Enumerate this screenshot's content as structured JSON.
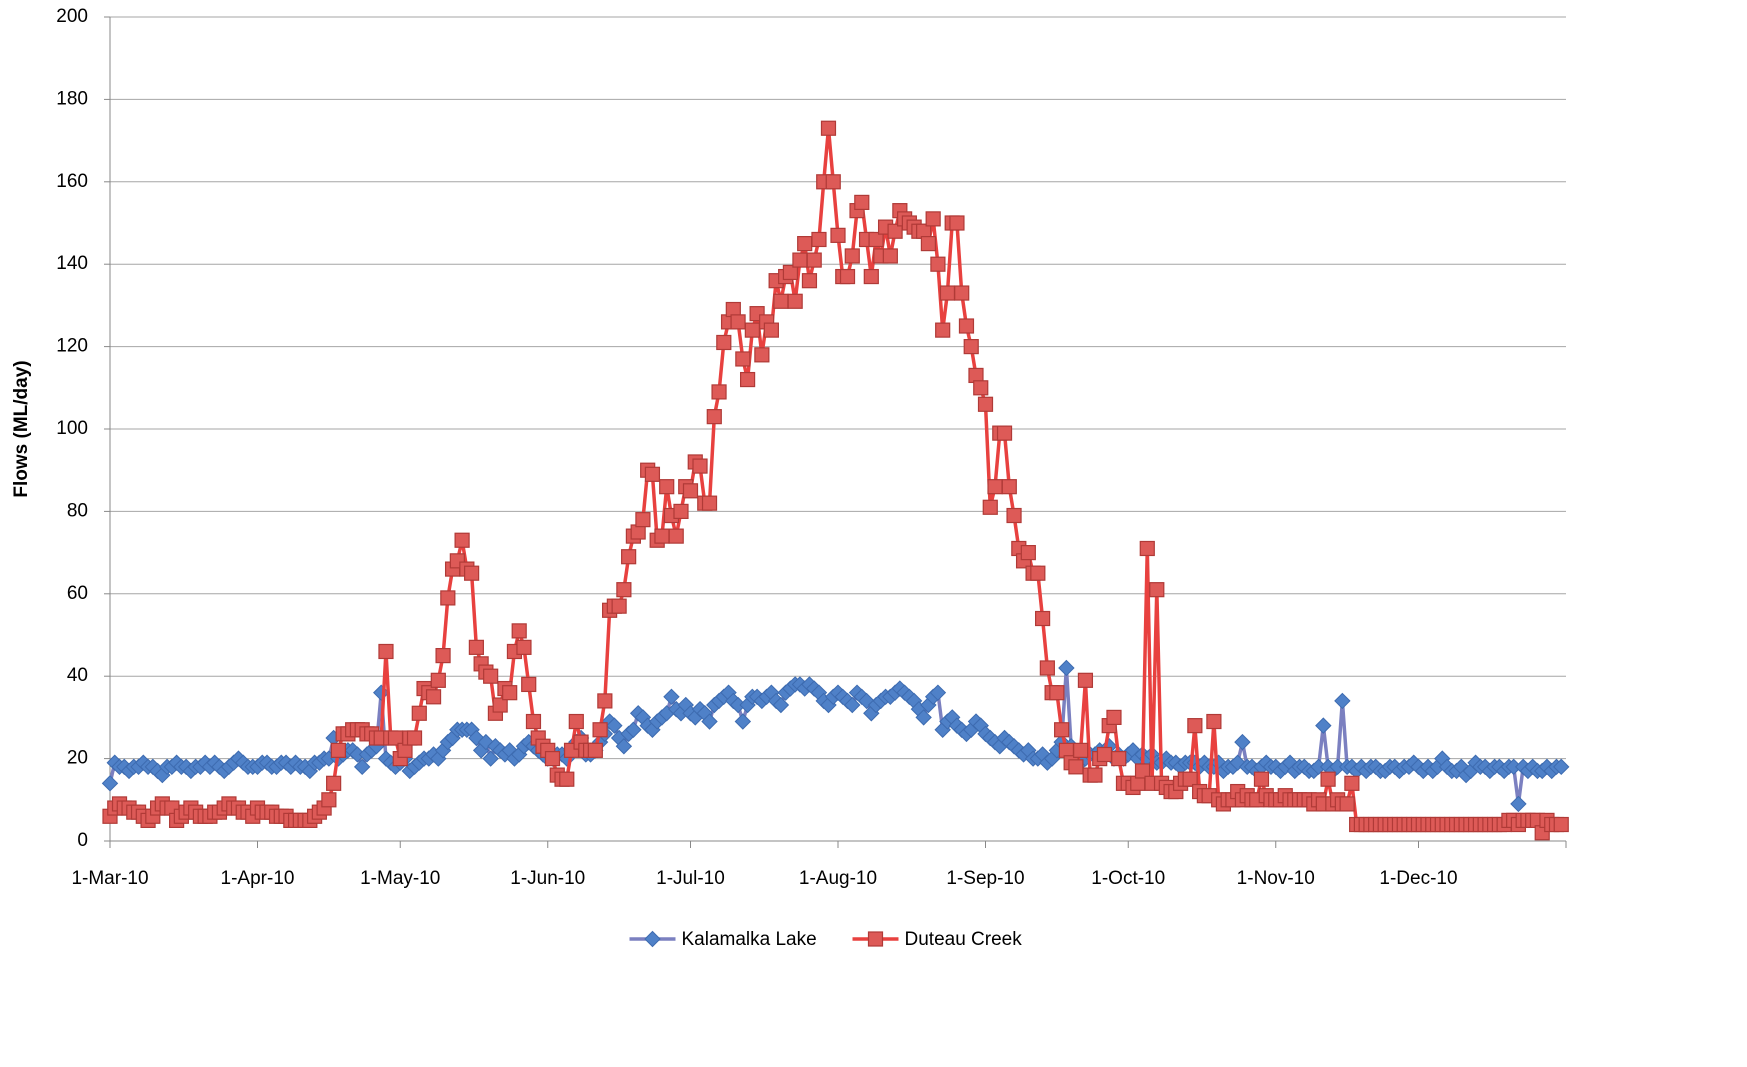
{
  "chart_data": {
    "type": "line",
    "y_label": "Flows (ML/day)",
    "ylim": [
      0,
      200
    ],
    "yticks": [
      0,
      20,
      40,
      60,
      80,
      100,
      120,
      140,
      160,
      180,
      200
    ],
    "grid": true,
    "xlim": [
      "2010-03-01",
      "2011-01-01"
    ],
    "xticks": [
      {
        "value": "2010-03-01",
        "label": "1-Mar-10"
      },
      {
        "value": "2010-04-01",
        "label": "1-Apr-10"
      },
      {
        "value": "2010-05-01",
        "label": "1-May-10"
      },
      {
        "value": "2010-06-01",
        "label": "1-Jun-10"
      },
      {
        "value": "2010-07-01",
        "label": "1-Jul-10"
      },
      {
        "value": "2010-08-01",
        "label": "1-Aug-10"
      },
      {
        "value": "2010-09-01",
        "label": "1-Sep-10"
      },
      {
        "value": "2010-10-01",
        "label": "1-Oct-10"
      },
      {
        "value": "2010-11-01",
        "label": "1-Nov-10"
      },
      {
        "value": "2010-12-01",
        "label": "1-Dec-10"
      }
    ],
    "legend": "bottom",
    "x": [
      "2010-03-01",
      "2010-03-02",
      "2010-03-03",
      "2010-03-04",
      "2010-03-05",
      "2010-03-06",
      "2010-03-07",
      "2010-03-08",
      "2010-03-09",
      "2010-03-10",
      "2010-03-11",
      "2010-03-12",
      "2010-03-13",
      "2010-03-14",
      "2010-03-15",
      "2010-03-16",
      "2010-03-17",
      "2010-03-18",
      "2010-03-19",
      "2010-03-20",
      "2010-03-21",
      "2010-03-22",
      "2010-03-23",
      "2010-03-24",
      "2010-03-25",
      "2010-03-26",
      "2010-03-27",
      "2010-03-28",
      "2010-03-29",
      "2010-03-30",
      "2010-03-31",
      "2010-04-01",
      "2010-04-02",
      "2010-04-03",
      "2010-04-04",
      "2010-04-05",
      "2010-04-06",
      "2010-04-07",
      "2010-04-08",
      "2010-04-09",
      "2010-04-10",
      "2010-04-11",
      "2010-04-12",
      "2010-04-13",
      "2010-04-14",
      "2010-04-15",
      "2010-04-16",
      "2010-04-17",
      "2010-04-18",
      "2010-04-19",
      "2010-04-20",
      "2010-04-21",
      "2010-04-22",
      "2010-04-23",
      "2010-04-24",
      "2010-04-25",
      "2010-04-26",
      "2010-04-27",
      "2010-04-28",
      "2010-04-29",
      "2010-04-30",
      "2010-05-01",
      "2010-05-02",
      "2010-05-03",
      "2010-05-04",
      "2010-05-05",
      "2010-05-06",
      "2010-05-07",
      "2010-05-08",
      "2010-05-09",
      "2010-05-10",
      "2010-05-11",
      "2010-05-12",
      "2010-05-13",
      "2010-05-14",
      "2010-05-15",
      "2010-05-16",
      "2010-05-17",
      "2010-05-18",
      "2010-05-19",
      "2010-05-20",
      "2010-05-21",
      "2010-05-22",
      "2010-05-23",
      "2010-05-24",
      "2010-05-25",
      "2010-05-26",
      "2010-05-27",
      "2010-05-28",
      "2010-05-29",
      "2010-05-30",
      "2010-05-31",
      "2010-06-01",
      "2010-06-02",
      "2010-06-03",
      "2010-06-04",
      "2010-06-05",
      "2010-06-06",
      "2010-06-07",
      "2010-06-08",
      "2010-06-09",
      "2010-06-10",
      "2010-06-11",
      "2010-06-12",
      "2010-06-13",
      "2010-06-14",
      "2010-06-15",
      "2010-06-16",
      "2010-06-17",
      "2010-06-18",
      "2010-06-19",
      "2010-06-20",
      "2010-06-21",
      "2010-06-22",
      "2010-06-23",
      "2010-06-24",
      "2010-06-25",
      "2010-06-26",
      "2010-06-27",
      "2010-06-28",
      "2010-06-29",
      "2010-06-30",
      "2010-07-01",
      "2010-07-02",
      "2010-07-03",
      "2010-07-04",
      "2010-07-05",
      "2010-07-06",
      "2010-07-07",
      "2010-07-08",
      "2010-07-09",
      "2010-07-10",
      "2010-07-11",
      "2010-07-12",
      "2010-07-13",
      "2010-07-14",
      "2010-07-15",
      "2010-07-16",
      "2010-07-17",
      "2010-07-18",
      "2010-07-19",
      "2010-07-20",
      "2010-07-21",
      "2010-07-22",
      "2010-07-23",
      "2010-07-24",
      "2010-07-25",
      "2010-07-26",
      "2010-07-27",
      "2010-07-28",
      "2010-07-29",
      "2010-07-30",
      "2010-07-31",
      "2010-08-01",
      "2010-08-02",
      "2010-08-03",
      "2010-08-04",
      "2010-08-05",
      "2010-08-06",
      "2010-08-07",
      "2010-08-08",
      "2010-08-09",
      "2010-08-10",
      "2010-08-11",
      "2010-08-12",
      "2010-08-13",
      "2010-08-14",
      "2010-08-15",
      "2010-08-16",
      "2010-08-17",
      "2010-08-18",
      "2010-08-19",
      "2010-08-20",
      "2010-08-21",
      "2010-08-22",
      "2010-08-23",
      "2010-08-24",
      "2010-08-25",
      "2010-08-26",
      "2010-08-27",
      "2010-08-28",
      "2010-08-29",
      "2010-08-30",
      "2010-08-31",
      "2010-09-01",
      "2010-09-02",
      "2010-09-03",
      "2010-09-04",
      "2010-09-05",
      "2010-09-06",
      "2010-09-07",
      "2010-09-08",
      "2010-09-09",
      "2010-09-10",
      "2010-09-11",
      "2010-09-12",
      "2010-09-13",
      "2010-09-14",
      "2010-09-15",
      "2010-09-16",
      "2010-09-17",
      "2010-09-18",
      "2010-09-19",
      "2010-09-20",
      "2010-09-21",
      "2010-09-22",
      "2010-09-23",
      "2010-09-24",
      "2010-09-25",
      "2010-09-26",
      "2010-09-27",
      "2010-09-28",
      "2010-09-29",
      "2010-09-30",
      "2010-10-01",
      "2010-10-02",
      "2010-10-03",
      "2010-10-04",
      "2010-10-05",
      "2010-10-06",
      "2010-10-07",
      "2010-10-08",
      "2010-10-09",
      "2010-10-10",
      "2010-10-11",
      "2010-10-12",
      "2010-10-13",
      "2010-10-14",
      "2010-10-15",
      "2010-10-16",
      "2010-10-17",
      "2010-10-18",
      "2010-10-19",
      "2010-10-20",
      "2010-10-21",
      "2010-10-22",
      "2010-10-23",
      "2010-10-24",
      "2010-10-25",
      "2010-10-26",
      "2010-10-27",
      "2010-10-28",
      "2010-10-29",
      "2010-10-30",
      "2010-10-31",
      "2010-11-01",
      "2010-11-02",
      "2010-11-03",
      "2010-11-04",
      "2010-11-05",
      "2010-11-06",
      "2010-11-07",
      "2010-11-08",
      "2010-11-09",
      "2010-11-10",
      "2010-11-11",
      "2010-11-12",
      "2010-11-13",
      "2010-11-14",
      "2010-11-15",
      "2010-11-16",
      "2010-11-17",
      "2010-11-18",
      "2010-11-19",
      "2010-11-20",
      "2010-11-21",
      "2010-11-22",
      "2010-11-23",
      "2010-11-24",
      "2010-11-25",
      "2010-11-26",
      "2010-11-27",
      "2010-11-28",
      "2010-11-29",
      "2010-11-30",
      "2010-12-01",
      "2010-12-02",
      "2010-12-03",
      "2010-12-04",
      "2010-12-05",
      "2010-12-06",
      "2010-12-07",
      "2010-12-08",
      "2010-12-09",
      "2010-12-10",
      "2010-12-11",
      "2010-12-12",
      "2010-12-13",
      "2010-12-14",
      "2010-12-15",
      "2010-12-16",
      "2010-12-17",
      "2010-12-18",
      "2010-12-19",
      "2010-12-20",
      "2010-12-21",
      "2010-12-22",
      "2010-12-23",
      "2010-12-24",
      "2010-12-25",
      "2010-12-26",
      "2010-12-27",
      "2010-12-28",
      "2010-12-29",
      "2010-12-30",
      "2010-12-31"
    ],
    "series": [
      {
        "name": "Kalamalka Lake",
        "color": "#7b80c0",
        "marker": "diamond",
        "marker_color": "#4f81c8",
        "values": [
          14,
          19,
          18,
          18,
          17,
          18,
          18,
          19,
          18,
          18,
          17,
          16,
          18,
          18,
          19,
          18,
          18,
          17,
          18,
          18,
          19,
          18,
          19,
          18,
          17,
          18,
          19,
          20,
          19,
          18,
          18,
          18,
          19,
          19,
          18,
          18,
          19,
          19,
          18,
          19,
          18,
          18,
          17,
          19,
          19,
          20,
          20,
          25,
          20,
          21,
          22,
          22,
          21,
          18,
          21,
          22,
          23,
          36,
          20,
          19,
          18,
          19,
          20,
          17,
          18,
          19,
          20,
          20,
          21,
          20,
          22,
          24,
          25,
          27,
          27,
          27,
          27,
          25,
          22,
          24,
          20,
          23,
          22,
          21,
          22,
          20,
          21,
          23,
          24,
          23,
          22,
          21,
          20,
          20,
          21,
          21,
          20,
          22,
          24,
          25,
          21,
          21,
          22,
          24,
          26,
          29,
          28,
          25,
          23,
          26,
          27,
          31,
          30,
          28,
          27,
          29,
          30,
          31,
          35,
          32,
          31,
          33,
          31,
          30,
          32,
          31,
          29,
          33,
          34,
          35,
          36,
          34,
          33,
          29,
          33,
          35,
          35,
          34,
          35,
          36,
          34,
          33,
          36,
          37,
          38,
          38,
          37,
          38,
          37,
          36,
          34,
          33,
          35,
          36,
          35,
          34,
          33,
          36,
          35,
          34,
          31,
          33,
          34,
          35,
          35,
          36,
          37,
          36,
          35,
          34,
          32,
          30,
          33,
          35,
          36,
          27,
          29,
          30,
          28,
          27,
          26,
          27,
          29,
          28,
          26,
          25,
          24,
          23,
          25,
          24,
          23,
          22,
          21,
          22,
          20,
          20,
          21,
          19,
          20,
          22,
          24,
          42,
          23,
          20,
          19,
          20,
          21,
          21,
          22,
          21,
          23,
          20,
          21,
          20,
          21,
          22,
          20,
          21,
          20,
          21,
          19,
          19,
          20,
          19,
          19,
          18,
          19,
          19,
          19,
          18,
          19,
          18,
          18,
          19,
          17,
          18,
          18,
          19,
          24,
          18,
          18,
          17,
          18,
          19,
          18,
          18,
          17,
          18,
          19,
          17,
          18,
          18,
          17,
          17,
          18,
          28,
          18,
          17,
          18,
          34,
          18,
          18,
          17,
          18,
          17,
          18,
          18,
          17,
          17,
          18,
          18,
          17,
          18,
          18,
          19,
          18,
          17,
          18,
          17,
          18,
          20,
          18,
          17,
          17,
          18,
          16,
          17,
          19,
          18,
          18,
          17,
          18,
          18,
          17,
          18,
          18,
          9,
          18,
          17,
          18,
          17,
          17,
          18,
          17,
          18,
          18
        ]
      },
      {
        "name": "Duteau Creek",
        "color": "#e8413f",
        "marker": "square",
        "marker_color": "#dd5a57",
        "values": [
          6,
          8,
          9,
          8,
          8,
          7,
          7,
          6,
          5,
          6,
          8,
          9,
          8,
          8,
          5,
          6,
          7,
          8,
          7,
          6,
          6,
          6,
          7,
          7,
          8,
          9,
          8,
          8,
          7,
          7,
          6,
          8,
          7,
          7,
          7,
          6,
          6,
          6,
          5,
          5,
          5,
          5,
          5,
          6,
          7,
          8,
          10,
          14,
          22,
          26,
          26,
          27,
          27,
          27,
          26,
          26,
          25,
          25,
          46,
          25,
          25,
          20,
          22,
          25,
          25,
          31,
          37,
          36,
          35,
          39,
          45,
          59,
          66,
          68,
          73,
          66,
          65,
          47,
          43,
          41,
          40,
          31,
          33,
          37,
          36,
          46,
          51,
          47,
          38,
          29,
          25,
          23,
          22,
          20,
          16,
          15,
          15,
          22,
          29,
          24,
          22,
          22,
          22,
          27,
          34,
          56,
          57,
          57,
          61,
          69,
          74,
          75,
          78,
          90,
          89,
          73,
          74,
          86,
          79,
          74,
          80,
          86,
          85,
          92,
          91,
          82,
          82,
          103,
          109,
          121,
          126,
          129,
          126,
          117,
          112,
          124,
          128,
          118,
          126,
          124,
          136,
          131,
          137,
          138,
          131,
          141,
          145,
          136,
          141,
          146,
          160,
          173,
          160,
          147,
          137,
          137,
          142,
          153,
          155,
          146,
          137,
          146,
          142,
          149,
          142,
          148,
          153,
          151,
          150,
          149,
          148,
          148,
          145,
          151,
          140,
          124,
          133,
          150,
          150,
          133,
          125,
          120,
          113,
          110,
          106,
          81,
          86,
          99,
          99,
          86,
          79,
          71,
          68,
          70,
          65,
          65,
          54,
          42,
          36,
          36,
          27,
          22,
          19,
          18,
          22,
          39,
          16,
          16,
          20,
          21,
          28,
          30,
          20,
          14,
          14,
          13,
          14,
          17,
          71,
          14,
          61,
          14,
          13,
          12,
          12,
          14,
          15,
          15,
          28,
          12,
          11,
          11,
          29,
          10,
          9,
          10,
          10,
          12,
          10,
          11,
          10,
          10,
          15,
          11,
          10,
          10,
          10,
          11,
          10,
          10,
          10,
          10,
          10,
          9,
          10,
          9,
          15,
          9,
          10,
          9,
          9,
          14,
          4,
          4,
          4,
          4,
          4,
          4,
          4,
          4,
          4,
          4,
          4,
          4,
          4,
          4,
          4,
          4,
          4,
          4,
          4,
          4,
          4,
          4,
          4,
          4,
          4,
          4,
          4,
          4,
          4,
          4,
          4,
          4,
          5,
          5,
          4,
          5,
          5,
          5,
          5,
          2,
          5,
          4,
          4,
          4
        ]
      }
    ]
  }
}
